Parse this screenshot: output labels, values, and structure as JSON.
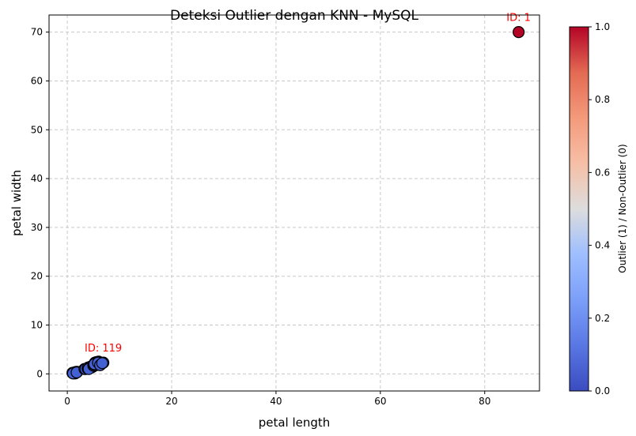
{
  "chart_data": {
    "type": "scatter",
    "title": "Deteksi Outlier dengan KNN - MySQL",
    "xlabel": "petal length",
    "ylabel": "petal width",
    "xlim": [
      -3.5,
      90.5
    ],
    "ylim": [
      -3.5,
      73.5
    ],
    "x_ticks": [
      0,
      20,
      40,
      60,
      80
    ],
    "y_ticks": [
      0,
      10,
      20,
      30,
      40,
      50,
      60,
      70
    ],
    "grid": true,
    "points": [
      {
        "x": 1.4,
        "y": 0.2,
        "outlier": 0
      },
      {
        "x": 1.3,
        "y": 0.2,
        "outlier": 0
      },
      {
        "x": 1.5,
        "y": 0.2,
        "outlier": 0
      },
      {
        "x": 1.4,
        "y": 0.3,
        "outlier": 0
      },
      {
        "x": 1.7,
        "y": 0.4,
        "outlier": 0
      },
      {
        "x": 1.5,
        "y": 0.1,
        "outlier": 0
      },
      {
        "x": 1.6,
        "y": 0.2,
        "outlier": 0
      },
      {
        "x": 1.2,
        "y": 0.2,
        "outlier": 0
      },
      {
        "x": 1.9,
        "y": 0.4,
        "outlier": 0
      },
      {
        "x": 1.0,
        "y": 0.2,
        "outlier": 0
      },
      {
        "x": 1.1,
        "y": 0.1,
        "outlier": 0
      },
      {
        "x": 1.8,
        "y": 0.3,
        "outlier": 0
      },
      {
        "x": 3.3,
        "y": 1.0,
        "outlier": 0
      },
      {
        "x": 3.5,
        "y": 1.0,
        "outlier": 0
      },
      {
        "x": 3.9,
        "y": 1.1,
        "outlier": 0
      },
      {
        "x": 4.0,
        "y": 1.3,
        "outlier": 0
      },
      {
        "x": 4.2,
        "y": 1.2,
        "outlier": 0
      },
      {
        "x": 4.4,
        "y": 1.4,
        "outlier": 0
      },
      {
        "x": 4.5,
        "y": 1.5,
        "outlier": 0
      },
      {
        "x": 4.7,
        "y": 1.4,
        "outlier": 0
      },
      {
        "x": 4.9,
        "y": 1.5,
        "outlier": 0
      },
      {
        "x": 4.6,
        "y": 1.3,
        "outlier": 0
      },
      {
        "x": 4.1,
        "y": 1.0,
        "outlier": 0
      },
      {
        "x": 5.0,
        "y": 1.7,
        "outlier": 0
      },
      {
        "x": 5.1,
        "y": 1.9,
        "outlier": 0
      },
      {
        "x": 5.3,
        "y": 2.3,
        "outlier": 0
      },
      {
        "x": 5.6,
        "y": 2.4,
        "outlier": 0
      },
      {
        "x": 5.8,
        "y": 2.2,
        "outlier": 0
      },
      {
        "x": 6.0,
        "y": 2.5,
        "outlier": 0
      },
      {
        "x": 6.1,
        "y": 2.3,
        "outlier": 0
      },
      {
        "x": 6.4,
        "y": 2.0,
        "outlier": 0
      },
      {
        "x": 6.6,
        "y": 2.1,
        "outlier": 0
      },
      {
        "x": 6.9,
        "y": 2.3,
        "outlier": 0
      },
      {
        "x": 5.5,
        "y": 1.8,
        "outlier": 0
      },
      {
        "x": 5.7,
        "y": 2.1,
        "outlier": 0
      },
      {
        "x": 5.4,
        "y": 2.1,
        "outlier": 0
      },
      {
        "x": 5.2,
        "y": 2.0,
        "outlier": 0
      },
      {
        "x": 5.9,
        "y": 2.3,
        "outlier": 0
      },
      {
        "x": 6.3,
        "y": 1.8,
        "outlier": 0
      },
      {
        "x": 6.7,
        "y": 2.2,
        "outlier": 0
      },
      {
        "x": 86.5,
        "y": 70.0,
        "outlier": 1
      }
    ],
    "annotations": [
      {
        "text": "ID: 1",
        "x": 86.5,
        "y": 70.0,
        "color": "#ff0000"
      },
      {
        "text": "ID: 119",
        "x": 6.9,
        "y": 2.3,
        "color": "#ff0000"
      }
    ],
    "colorbar": {
      "label": "Outlier (1) / Non-Outlier (0)",
      "colormap": "coolwarm",
      "range": [
        0.0,
        1.0
      ],
      "ticks": [
        "0.0",
        "0.2",
        "0.4",
        "0.6",
        "0.8",
        "1.0"
      ],
      "colors": {
        "low": "#3b4cc0",
        "mid": "#dddddd",
        "high": "#b40426"
      }
    },
    "colors": {
      "non_outlier": "#4461d4",
      "outlier": "#b40426",
      "marker_edge": "#000000",
      "grid": "#c8c8c8",
      "annotation": "#ff0000"
    }
  }
}
